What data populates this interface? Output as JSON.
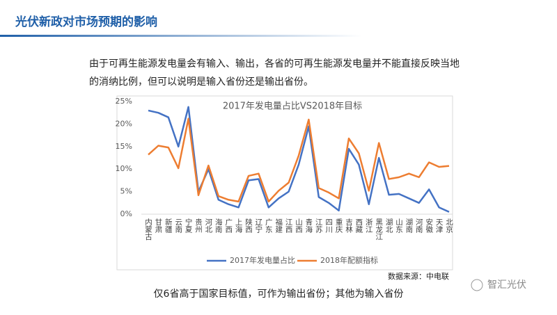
{
  "header": {
    "title": "光伏新政对市场预期的影响"
  },
  "intro": [
    "由于可再生能源发电量会有输入、输出，各省的可再生能源发电量并不能直接反映当地",
    "的消纳比例，但可以说明是输入省份还是输出省份。"
  ],
  "chart_data": {
    "type": "line",
    "title": "2017年发电量占比VS2018年目标",
    "categories": [
      "内蒙古",
      "甘肃",
      "新疆",
      "云南",
      "宁夏",
      "贵州",
      "河北",
      "海南",
      "广西",
      "上海",
      "陕西",
      "辽宁",
      "广东",
      "福建",
      "江西",
      "山西",
      "青海",
      "江苏",
      "四川",
      "重庆",
      "吉林",
      "西藏",
      "浙江",
      "黑龙江",
      "湖北",
      "山东",
      "湖南",
      "河南",
      "安徽",
      "天津",
      "北京"
    ],
    "series": [
      {
        "name": "2017年发电量占比",
        "color": "#4472c4",
        "values": [
          23,
          22.5,
          21.5,
          15,
          23.8,
          5,
          10,
          3.2,
          2.2,
          1.5,
          7.5,
          7.8,
          1.5,
          3.5,
          5,
          11,
          19.5,
          3.8,
          2.5,
          0.8,
          14.5,
          11,
          2.2,
          12.5,
          4.3,
          4.5,
          3.5,
          2.5,
          5.5,
          1.5,
          0.5
        ]
      },
      {
        "name": "2018年配额指标",
        "color": "#ed7d31",
        "values": [
          13.2,
          15.2,
          14.8,
          10.2,
          21.2,
          4.2,
          10.8,
          4,
          3.2,
          2.8,
          8.5,
          9,
          2.8,
          5.2,
          7,
          13,
          21,
          5.8,
          4.8,
          3.5,
          16.8,
          13.5,
          5.2,
          15.8,
          7.8,
          8.2,
          9,
          8.2,
          11.5,
          10.5,
          10.7
        ]
      }
    ],
    "ylim": [
      0,
      25
    ],
    "yticks": [
      {
        "value": 0,
        "label": "0%"
      },
      {
        "value": 5,
        "label": "5%"
      },
      {
        "value": 10,
        "label": "10%"
      },
      {
        "value": 15,
        "label": "15%"
      },
      {
        "value": 20,
        "label": "20%"
      },
      {
        "value": 25,
        "label": "25%"
      }
    ],
    "grid": false
  },
  "source": "数据来源：中电联",
  "note": "仅6省高于国家目标值，可作为输出省份；其他为输入省份",
  "logo": "智汇光伏"
}
